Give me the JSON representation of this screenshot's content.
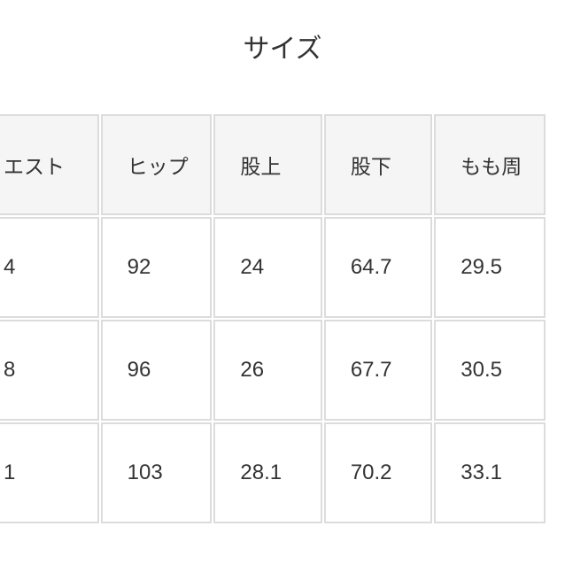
{
  "title": "サイズ",
  "table": {
    "headers": [
      "エスト",
      "ヒップ",
      "股上",
      "股下",
      "もも周"
    ],
    "rows": [
      [
        "4",
        "92",
        "24",
        "64.7",
        "29.5"
      ],
      [
        "8",
        "96",
        "26",
        "67.7",
        "30.5"
      ],
      [
        "1",
        "103",
        "28.1",
        "70.2",
        "33.1"
      ]
    ]
  },
  "colors": {
    "header_bg": "#f5f5f5",
    "border": "#dcdcdc",
    "text": "#333333"
  }
}
